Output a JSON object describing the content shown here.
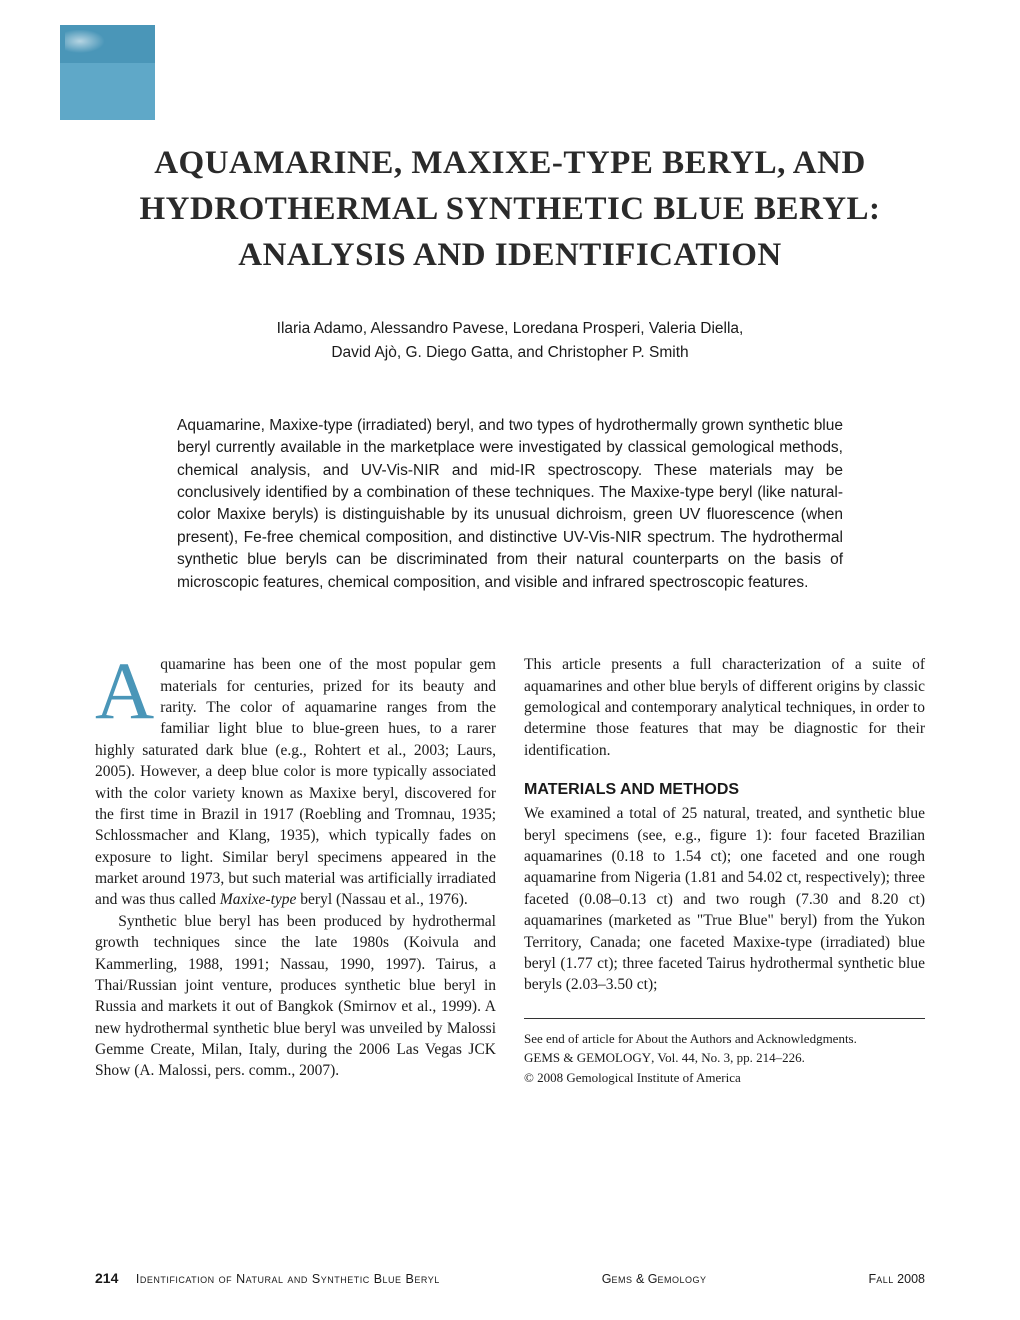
{
  "colors": {
    "logo_top": "#4a96b8",
    "logo_bottom": "#5fa8c8",
    "dropcap": "#4a96b8",
    "text": "#1a1a1a",
    "bg": "#ffffff"
  },
  "title": {
    "line1": "AQUAMARINE, MAXIXE-TYPE BERYL, AND",
    "line2": "HYDROTHERMAL SYNTHETIC BLUE BERYL:",
    "line3": "ANALYSIS AND IDENTIFICATION"
  },
  "authors": {
    "line1": "Ilaria Adamo, Alessandro Pavese, Loredana Prosperi, Valeria Diella,",
    "line2": "David Ajò, G. Diego Gatta, and Christopher P. Smith"
  },
  "abstract": "Aquamarine, Maxixe-type (irradiated) beryl, and two types of hydrothermally grown synthetic blue beryl currently available in the marketplace were investigated by classical gemological methods, chemical analysis, and UV-Vis-NIR and mid-IR spectroscopy. These materials may be conclusively identified by a combination of these techniques. The Maxixe-type beryl (like natural-color Maxixe beryls) is distinguishable by its unusual dichroism, green UV fluorescence (when present), Fe-free chemical composition, and distinctive UV-Vis-NIR spectrum. The hydrothermal synthetic blue beryls can be discriminated from their natural counterparts on the basis of microscopic features, chemical composition, and visible and infrared spectroscopic features.",
  "body": {
    "dropcap": "A",
    "left_p1": "quamarine has been one of the most popular gem materials for centuries, prized for its beauty and rarity. The color of aquamarine ranges from the familiar light blue to blue-green hues, to a rarer highly saturated dark blue (e.g., Rohtert et al., 2003; Laurs, 2005). However, a deep blue color is more typically associated with the color variety known as Maxixe beryl, discovered for the first time in Brazil in 1917 (Roebling and Tromnau, 1935; Schlossmacher and Klang, 1935), which typically fades on exposure to light. Similar beryl specimens appeared in the market around 1973, but such material was artificially irradiated and was thus called Maxixe-type beryl (Nassau et al., 1976).",
    "left_p2": "Synthetic blue beryl has been produced by hydrothermal growth techniques since the late 1980s (Koivula and Kammerling, 1988, 1991; Nassau, 1990, 1997). Tairus, a Thai/Russian joint venture, produces synthetic blue beryl in Russia and markets it out of Bangkok (Smirnov et al., 1999). A new hydrothermal synthetic blue beryl was unveiled by Malossi Gemme Create, Milan, Italy, during the 2006 Las Vegas JCK Show (A. Malossi, pers. comm., 2007).",
    "right_p1": "This article presents a full characterization of a suite of aquamarines and other blue beryls of different origins by classic gemological and contemporary analytical techniques, in order to determine those features that may be diagnostic for their identification.",
    "section_head": "MATERIALS AND METHODS",
    "right_p2": "We examined a total of 25 natural, treated, and synthetic blue beryl specimens (see, e.g., figure 1): four faceted Brazilian aquamarines (0.18 to 1.54 ct); one faceted and one rough aquamarine from Nigeria (1.81 and 54.02 ct, respectively); three faceted (0.08–0.13 ct) and two rough (7.30 and 8.20 ct) aquamarines (marketed as \"True Blue\" beryl) from the Yukon Territory, Canada; one faceted Maxixe-type (irradiated) blue beryl (1.77 ct); three faceted Tairus hydrothermal synthetic blue beryls (2.03–3.50 ct);"
  },
  "footnote": {
    "l1": "See end of article for About the Authors and Acknowledgments.",
    "l2_pre": "G",
    "l2_sc1": "EMS",
    "l2_amp": " & G",
    "l2_sc2": "EMOLOGY",
    "l2_rest": ", Vol. 44, No. 3, pp. 214–226.",
    "l3": "© 2008 Gemological Institute of America"
  },
  "footer": {
    "page": "214",
    "left_sc": "Identification of Natural and Synthetic Blue Beryl",
    "center_pre": "G",
    "center_sc1": "ems",
    "center_amp": " & G",
    "center_sc2": "emology",
    "right_pre": "F",
    "right_sc": "all",
    "right_yr": " 2008"
  }
}
